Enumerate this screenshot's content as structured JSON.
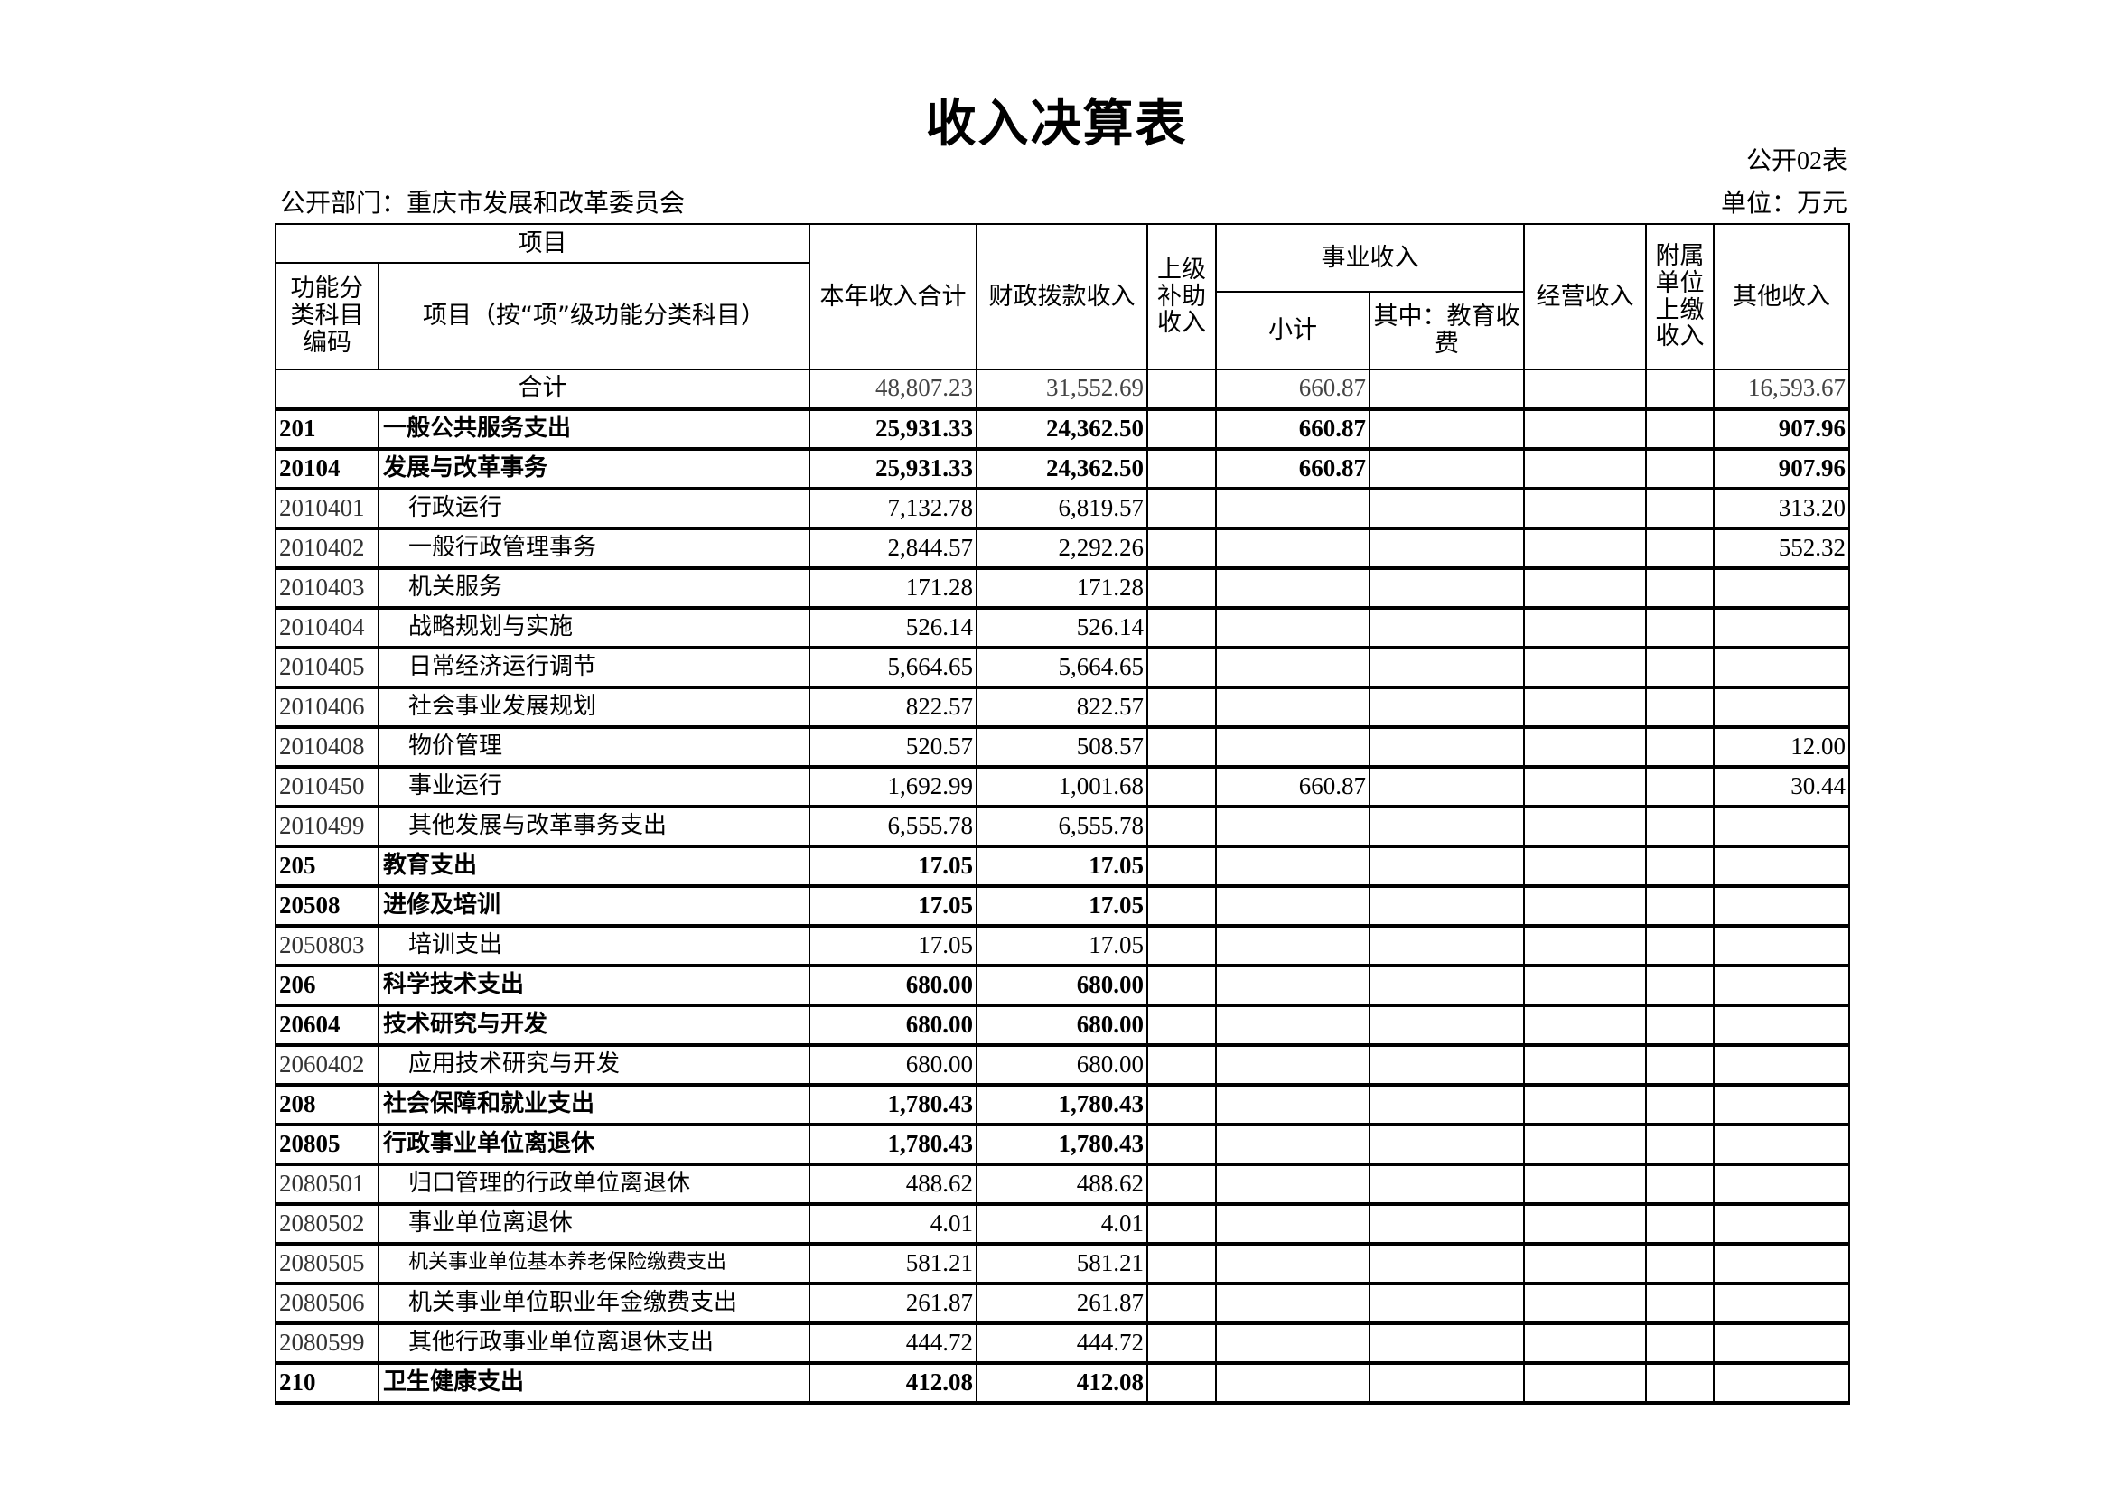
{
  "title": "收入决算表",
  "form_no": "公开02表",
  "department": "公开部门：重庆市发展和改革委员会",
  "unit": "单位：万元",
  "headers": {
    "item": "项目",
    "code": "功能分类科目编码",
    "name": "项目（按“项”级功能分类科目）",
    "total": "本年收入合计",
    "fiscal": "财政拨款收入",
    "superior": "上级补助收入",
    "business": "事业收入",
    "subtotal": "小计",
    "education": "其中：教育收费",
    "operating": "经营收入",
    "affiliated": "附属单位上缴收入",
    "other": "其他收入"
  },
  "total_row": {
    "label": "合计",
    "total": "48,807.23",
    "fiscal": "31,552.69",
    "superior": "",
    "subtotal": "660.87",
    "education": "",
    "operating": "",
    "affiliated": "",
    "other": "16,593.67"
  },
  "rows": [
    {
      "code": "201",
      "name": "一般公共服务支出",
      "total": "25,931.33",
      "fiscal": "24,362.50",
      "superior": "",
      "subtotal": "660.87",
      "education": "",
      "operating": "",
      "affiliated": "",
      "other": "907.96"
    },
    {
      "code": "20104",
      "name": "发展与改革事务",
      "total": "25,931.33",
      "fiscal": "24,362.50",
      "superior": "",
      "subtotal": "660.87",
      "education": "",
      "operating": "",
      "affiliated": "",
      "other": "907.96"
    },
    {
      "code": "2010401",
      "name": "行政运行",
      "total": "7,132.78",
      "fiscal": "6,819.57",
      "superior": "",
      "subtotal": "",
      "education": "",
      "operating": "",
      "affiliated": "",
      "other": "313.20"
    },
    {
      "code": "2010402",
      "name": "一般行政管理事务",
      "total": "2,844.57",
      "fiscal": "2,292.26",
      "superior": "",
      "subtotal": "",
      "education": "",
      "operating": "",
      "affiliated": "",
      "other": "552.32"
    },
    {
      "code": "2010403",
      "name": "机关服务",
      "total": "171.28",
      "fiscal": "171.28",
      "superior": "",
      "subtotal": "",
      "education": "",
      "operating": "",
      "affiliated": "",
      "other": ""
    },
    {
      "code": "2010404",
      "name": "战略规划与实施",
      "total": "526.14",
      "fiscal": "526.14",
      "superior": "",
      "subtotal": "",
      "education": "",
      "operating": "",
      "affiliated": "",
      "other": ""
    },
    {
      "code": "2010405",
      "name": "日常经济运行调节",
      "total": "5,664.65",
      "fiscal": "5,664.65",
      "superior": "",
      "subtotal": "",
      "education": "",
      "operating": "",
      "affiliated": "",
      "other": ""
    },
    {
      "code": "2010406",
      "name": "社会事业发展规划",
      "total": "822.57",
      "fiscal": "822.57",
      "superior": "",
      "subtotal": "",
      "education": "",
      "operating": "",
      "affiliated": "",
      "other": ""
    },
    {
      "code": "2010408",
      "name": "物价管理",
      "total": "520.57",
      "fiscal": "508.57",
      "superior": "",
      "subtotal": "",
      "education": "",
      "operating": "",
      "affiliated": "",
      "other": "12.00"
    },
    {
      "code": "2010450",
      "name": "事业运行",
      "total": "1,692.99",
      "fiscal": "1,001.68",
      "superior": "",
      "subtotal": "660.87",
      "education": "",
      "operating": "",
      "affiliated": "",
      "other": "30.44"
    },
    {
      "code": "2010499",
      "name": "其他发展与改革事务支出",
      "total": "6,555.78",
      "fiscal": "6,555.78",
      "superior": "",
      "subtotal": "",
      "education": "",
      "operating": "",
      "affiliated": "",
      "other": ""
    },
    {
      "code": "205",
      "name": "教育支出",
      "total": "17.05",
      "fiscal": "17.05",
      "superior": "",
      "subtotal": "",
      "education": "",
      "operating": "",
      "affiliated": "",
      "other": ""
    },
    {
      "code": "20508",
      "name": "进修及培训",
      "total": "17.05",
      "fiscal": "17.05",
      "superior": "",
      "subtotal": "",
      "education": "",
      "operating": "",
      "affiliated": "",
      "other": ""
    },
    {
      "code": "2050803",
      "name": "培训支出",
      "total": "17.05",
      "fiscal": "17.05",
      "superior": "",
      "subtotal": "",
      "education": "",
      "operating": "",
      "affiliated": "",
      "other": ""
    },
    {
      "code": "206",
      "name": "科学技术支出",
      "total": "680.00",
      "fiscal": "680.00",
      "superior": "",
      "subtotal": "",
      "education": "",
      "operating": "",
      "affiliated": "",
      "other": ""
    },
    {
      "code": "20604",
      "name": "技术研究与开发",
      "total": "680.00",
      "fiscal": "680.00",
      "superior": "",
      "subtotal": "",
      "education": "",
      "operating": "",
      "affiliated": "",
      "other": ""
    },
    {
      "code": "2060402",
      "name": "应用技术研究与开发",
      "total": "680.00",
      "fiscal": "680.00",
      "superior": "",
      "subtotal": "",
      "education": "",
      "operating": "",
      "affiliated": "",
      "other": ""
    },
    {
      "code": "208",
      "name": "社会保障和就业支出",
      "total": "1,780.43",
      "fiscal": "1,780.43",
      "superior": "",
      "subtotal": "",
      "education": "",
      "operating": "",
      "affiliated": "",
      "other": ""
    },
    {
      "code": "20805",
      "name": "行政事业单位离退休",
      "total": "1,780.43",
      "fiscal": "1,780.43",
      "superior": "",
      "subtotal": "",
      "education": "",
      "operating": "",
      "affiliated": "",
      "other": ""
    },
    {
      "code": "2080501",
      "name": "归口管理的行政单位离退休",
      "total": "488.62",
      "fiscal": "488.62",
      "superior": "",
      "subtotal": "",
      "education": "",
      "operating": "",
      "affiliated": "",
      "other": ""
    },
    {
      "code": "2080502",
      "name": "事业单位离退休",
      "total": "4.01",
      "fiscal": "4.01",
      "superior": "",
      "subtotal": "",
      "education": "",
      "operating": "",
      "affiliated": "",
      "other": ""
    },
    {
      "code": "2080505",
      "name": "机关事业单位基本养老保险缴费支出",
      "total": "581.21",
      "fiscal": "581.21",
      "superior": "",
      "subtotal": "",
      "education": "",
      "operating": "",
      "affiliated": "",
      "other": ""
    },
    {
      "code": "2080506",
      "name": "机关事业单位职业年金缴费支出",
      "total": "261.87",
      "fiscal": "261.87",
      "superior": "",
      "subtotal": "",
      "education": "",
      "operating": "",
      "affiliated": "",
      "other": ""
    },
    {
      "code": "2080599",
      "name": "其他行政事业单位离退休支出",
      "total": "444.72",
      "fiscal": "444.72",
      "superior": "",
      "subtotal": "",
      "education": "",
      "operating": "",
      "affiliated": "",
      "other": ""
    },
    {
      "code": "210",
      "name": "卫生健康支出",
      "total": "412.08",
      "fiscal": "412.08",
      "superior": "",
      "subtotal": "",
      "education": "",
      "operating": "",
      "affiliated": "",
      "other": ""
    }
  ]
}
